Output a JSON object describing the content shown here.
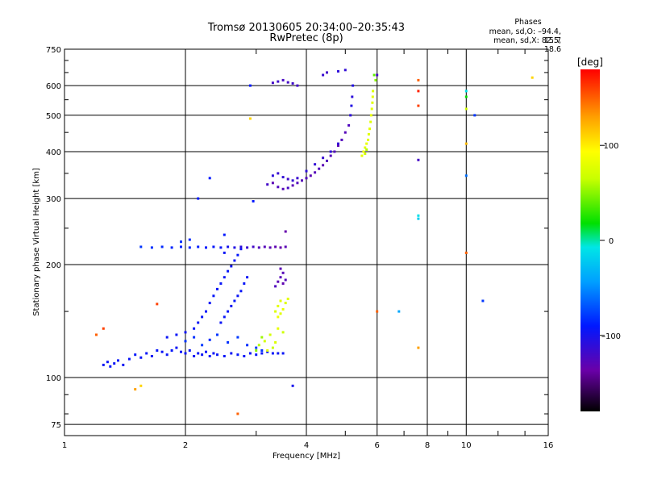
{
  "header": {
    "title_line1": "Tromsø 20130605 20:34:00–20:35:43",
    "title_line2": "RwPretec (8p)",
    "stats_title": "Phases",
    "stats_o": "mean, sd,O: –94.4, 15.7",
    "stats_x": "mean, sd,X:  82.5, 18.6"
  },
  "chart_data": {
    "type": "scatter",
    "title": "Tromsø 20130605 20:34:00–20:35:43",
    "subtitle": "RwPretec (8p)",
    "xlabel": "Frequency [MHz]",
    "ylabel": "Stationary phase Virtual Height [km]",
    "x_scale": "log",
    "y_scale": "log",
    "xlim": [
      1,
      16
    ],
    "ylim": [
      70,
      750
    ],
    "x_ticks": [
      1,
      2,
      4,
      6,
      8,
      10,
      16
    ],
    "x_tick_labels": [
      "1",
      "2",
      "4",
      "6",
      "8",
      "10",
      "16"
    ],
    "y_ticks": [
      75,
      100,
      200,
      300,
      400,
      500,
      600,
      750
    ],
    "y_tick_labels": [
      "75",
      "100",
      "200",
      "300",
      "400",
      "500",
      "600",
      "750"
    ],
    "grid": true,
    "colorbar": {
      "label": "[deg]",
      "range": [
        -180,
        180
      ],
      "ticks": [
        100,
        0,
        -100
      ],
      "tick_labels": [
        "100",
        "0",
        "–100"
      ],
      "colormap": "rainbow"
    },
    "series": [
      {
        "values_note_free": true,
        "points": [
          [
            1.25,
            108,
            -95
          ],
          [
            1.28,
            110,
            -95
          ],
          [
            1.3,
            107,
            -92
          ],
          [
            1.33,
            109,
            -95
          ],
          [
            1.36,
            111,
            -93
          ],
          [
            1.4,
            108,
            -96
          ],
          [
            1.45,
            112,
            -94
          ],
          [
            1.5,
            115,
            -92
          ],
          [
            1.55,
            113,
            -95
          ],
          [
            1.6,
            116,
            -94
          ],
          [
            1.65,
            114,
            -96
          ],
          [
            1.7,
            118,
            -93
          ],
          [
            1.75,
            117,
            -95
          ],
          [
            1.8,
            115,
            -94
          ],
          [
            1.85,
            118,
            -92
          ],
          [
            1.9,
            120,
            -95
          ],
          [
            1.95,
            117,
            -93
          ],
          [
            2.0,
            116,
            -95
          ],
          [
            2.05,
            118,
            -94
          ],
          [
            2.1,
            114,
            -96
          ],
          [
            2.15,
            116,
            -94
          ],
          [
            2.2,
            115,
            -95
          ],
          [
            2.25,
            117,
            -93
          ],
          [
            2.3,
            114,
            -92
          ],
          [
            2.35,
            116,
            -95
          ],
          [
            2.4,
            115,
            -94
          ],
          [
            2.5,
            114,
            -93
          ],
          [
            2.6,
            116,
            -95
          ],
          [
            2.7,
            115,
            -92
          ],
          [
            2.8,
            114,
            -94
          ],
          [
            2.9,
            116,
            -96
          ],
          [
            3.0,
            115,
            -93
          ],
          [
            3.1,
            116,
            -95
          ],
          [
            3.2,
            117,
            -94
          ],
          [
            3.3,
            116,
            -93
          ],
          [
            3.4,
            116,
            -95
          ],
          [
            3.5,
            116,
            -94
          ],
          [
            1.8,
            128,
            -95
          ],
          [
            1.9,
            130,
            -94
          ],
          [
            2.0,
            132,
            -96
          ],
          [
            2.1,
            135,
            -93
          ],
          [
            2.15,
            140,
            -95
          ],
          [
            2.2,
            145,
            -94
          ],
          [
            2.25,
            150,
            -92
          ],
          [
            2.3,
            158,
            -95
          ],
          [
            2.35,
            165,
            -93
          ],
          [
            2.4,
            172,
            -95
          ],
          [
            2.45,
            178,
            -94
          ],
          [
            2.5,
            185,
            -96
          ],
          [
            2.55,
            192,
            -93
          ],
          [
            2.6,
            198,
            -95
          ],
          [
            2.65,
            205,
            -94
          ],
          [
            2.7,
            212,
            -92
          ],
          [
            2.75,
            220,
            -95
          ],
          [
            2.45,
            140,
            -95
          ],
          [
            2.5,
            145,
            -94
          ],
          [
            2.55,
            150,
            -93
          ],
          [
            2.6,
            155,
            -96
          ],
          [
            2.65,
            160,
            -92
          ],
          [
            2.7,
            165,
            -95
          ],
          [
            2.75,
            170,
            -94
          ],
          [
            2.8,
            178,
            -93
          ],
          [
            2.85,
            185,
            -95
          ],
          [
            2.0,
            125,
            -80
          ],
          [
            2.1,
            128,
            -82
          ],
          [
            2.2,
            122,
            -78
          ],
          [
            2.3,
            126,
            -84
          ],
          [
            2.4,
            130,
            -80
          ],
          [
            2.55,
            124,
            -82
          ],
          [
            2.7,
            128,
            -79
          ],
          [
            2.85,
            122,
            -83
          ],
          [
            3.0,
            120,
            -78
          ],
          [
            3.1,
            118,
            -81
          ],
          [
            1.55,
            223,
            -80
          ],
          [
            1.65,
            222,
            -82
          ],
          [
            1.75,
            223,
            -84
          ],
          [
            1.85,
            222,
            -86
          ],
          [
            1.95,
            223,
            -85
          ],
          [
            2.05,
            222,
            -87
          ],
          [
            2.15,
            223,
            -88
          ],
          [
            2.25,
            222,
            -90
          ],
          [
            2.35,
            223,
            -92
          ],
          [
            2.45,
            222,
            -95
          ],
          [
            2.55,
            223,
            -100
          ],
          [
            2.65,
            222,
            -105
          ],
          [
            2.75,
            223,
            -110
          ],
          [
            2.85,
            222,
            -115
          ],
          [
            2.95,
            223,
            -120
          ],
          [
            3.05,
            222,
            -125
          ],
          [
            3.15,
            223,
            -128
          ],
          [
            3.25,
            222,
            -130
          ],
          [
            3.35,
            223,
            -132
          ],
          [
            3.45,
            222,
            -135
          ],
          [
            3.55,
            223,
            -130
          ],
          [
            1.95,
            230,
            -82
          ],
          [
            2.05,
            233,
            -85
          ],
          [
            3.35,
            175,
            -125
          ],
          [
            3.4,
            180,
            -130
          ],
          [
            3.45,
            185,
            -128
          ],
          [
            3.5,
            178,
            -132
          ],
          [
            3.55,
            182,
            -126
          ],
          [
            3.45,
            195,
            -130
          ],
          [
            3.5,
            190,
            -128
          ],
          [
            3.55,
            245,
            -135
          ],
          [
            3.35,
            150,
            75
          ],
          [
            3.4,
            155,
            80
          ],
          [
            3.45,
            160,
            78
          ],
          [
            3.5,
            152,
            82
          ],
          [
            3.55,
            158,
            76
          ],
          [
            3.6,
            162,
            80
          ],
          [
            3.4,
            145,
            85
          ],
          [
            3.45,
            148,
            78
          ],
          [
            3.05,
            122,
            60
          ],
          [
            3.15,
            125,
            70
          ],
          [
            3.2,
            118,
            80
          ],
          [
            3.3,
            120,
            65
          ],
          [
            3.35,
            124,
            75
          ],
          [
            3.1,
            128,
            55
          ],
          [
            3.25,
            130,
            72
          ],
          [
            3.4,
            135,
            82
          ],
          [
            3.5,
            132,
            68
          ],
          [
            3.0,
            118,
            50
          ],
          [
            3.2,
            327,
            -120
          ],
          [
            3.3,
            330,
            -130
          ],
          [
            3.4,
            322,
            -125
          ],
          [
            3.5,
            318,
            -128
          ],
          [
            3.6,
            320,
            -122
          ],
          [
            3.7,
            325,
            -130
          ],
          [
            3.8,
            330,
            -126
          ],
          [
            3.9,
            335,
            -128
          ],
          [
            4.0,
            340,
            -125
          ],
          [
            4.1,
            345,
            -130
          ],
          [
            4.2,
            352,
            -128
          ],
          [
            4.3,
            360,
            -125
          ],
          [
            4.4,
            368,
            -130
          ],
          [
            4.5,
            378,
            -126
          ],
          [
            4.6,
            390,
            -128
          ],
          [
            4.7,
            400,
            -125
          ],
          [
            4.8,
            415,
            -130
          ],
          [
            4.9,
            430,
            -126
          ],
          [
            5.0,
            450,
            -128
          ],
          [
            5.1,
            470,
            -125
          ],
          [
            5.15,
            500,
            -110
          ],
          [
            5.18,
            530,
            -105
          ],
          [
            5.2,
            560,
            -110
          ],
          [
            5.22,
            600,
            -105
          ],
          [
            3.3,
            345,
            -110
          ],
          [
            3.4,
            350,
            -115
          ],
          [
            3.5,
            342,
            -112
          ],
          [
            3.6,
            338,
            -118
          ],
          [
            3.7,
            335,
            -114
          ],
          [
            3.8,
            340,
            -116
          ],
          [
            4.0,
            355,
            -110
          ],
          [
            4.2,
            370,
            -112
          ],
          [
            4.4,
            385,
            -115
          ],
          [
            4.6,
            400,
            -110
          ],
          [
            4.8,
            420,
            -112
          ],
          [
            3.3,
            610,
            -120
          ],
          [
            3.4,
            615,
            -118
          ],
          [
            3.5,
            620,
            -122
          ],
          [
            3.6,
            612,
            -120
          ],
          [
            3.7,
            608,
            -118
          ],
          [
            3.8,
            600,
            -120
          ],
          [
            4.4,
            640,
            -115
          ],
          [
            4.5,
            650,
            -120
          ],
          [
            4.8,
            655,
            -110
          ],
          [
            5.0,
            660,
            -112
          ],
          [
            5.5,
            390,
            80
          ],
          [
            5.55,
            400,
            85
          ],
          [
            5.6,
            410,
            78
          ],
          [
            5.65,
            420,
            82
          ],
          [
            5.7,
            430,
            80
          ],
          [
            5.72,
            445,
            76
          ],
          [
            5.75,
            460,
            80
          ],
          [
            5.78,
            480,
            78
          ],
          [
            5.8,
            500,
            82
          ],
          [
            5.82,
            520,
            80
          ],
          [
            5.84,
            540,
            78
          ],
          [
            5.85,
            560,
            80
          ],
          [
            5.86,
            580,
            76
          ],
          [
            5.6,
            395,
            70
          ],
          [
            5.65,
            405,
            60
          ],
          [
            5.9,
            640,
            40
          ],
          [
            5.95,
            620,
            50
          ],
          [
            6.0,
            640,
            -120
          ],
          [
            7.6,
            620,
            150
          ],
          [
            7.6,
            580,
            170
          ],
          [
            7.6,
            530,
            160
          ],
          [
            7.6,
            380,
            -120
          ],
          [
            7.6,
            270,
            -10
          ],
          [
            7.6,
            265,
            -20
          ],
          [
            7.6,
            120,
            130
          ],
          [
            10.0,
            580,
            -10
          ],
          [
            10.0,
            560,
            20
          ],
          [
            10.0,
            520,
            70
          ],
          [
            10.0,
            420,
            120
          ],
          [
            10.0,
            345,
            -60
          ],
          [
            10.0,
            215,
            150
          ],
          [
            10.5,
            500,
            -80
          ],
          [
            11.0,
            160,
            -80
          ],
          [
            6.0,
            150,
            150
          ],
          [
            6.8,
            150,
            -40
          ],
          [
            14.6,
            630,
            110
          ],
          [
            2.5,
            240,
            -90
          ],
          [
            2.15,
            300,
            -90
          ],
          [
            2.3,
            340,
            -90
          ],
          [
            2.9,
            600,
            -90
          ],
          [
            1.2,
            130,
            150
          ],
          [
            1.25,
            135,
            160
          ],
          [
            1.5,
            93,
            130
          ],
          [
            1.55,
            95,
            110
          ],
          [
            1.7,
            157,
            160
          ],
          [
            2.9,
            490,
            110
          ],
          [
            2.7,
            80,
            150
          ],
          [
            3.7,
            95,
            -100
          ],
          [
            2.95,
            295,
            -90
          ],
          [
            2.5,
            215,
            -95
          ]
        ]
      }
    ]
  }
}
